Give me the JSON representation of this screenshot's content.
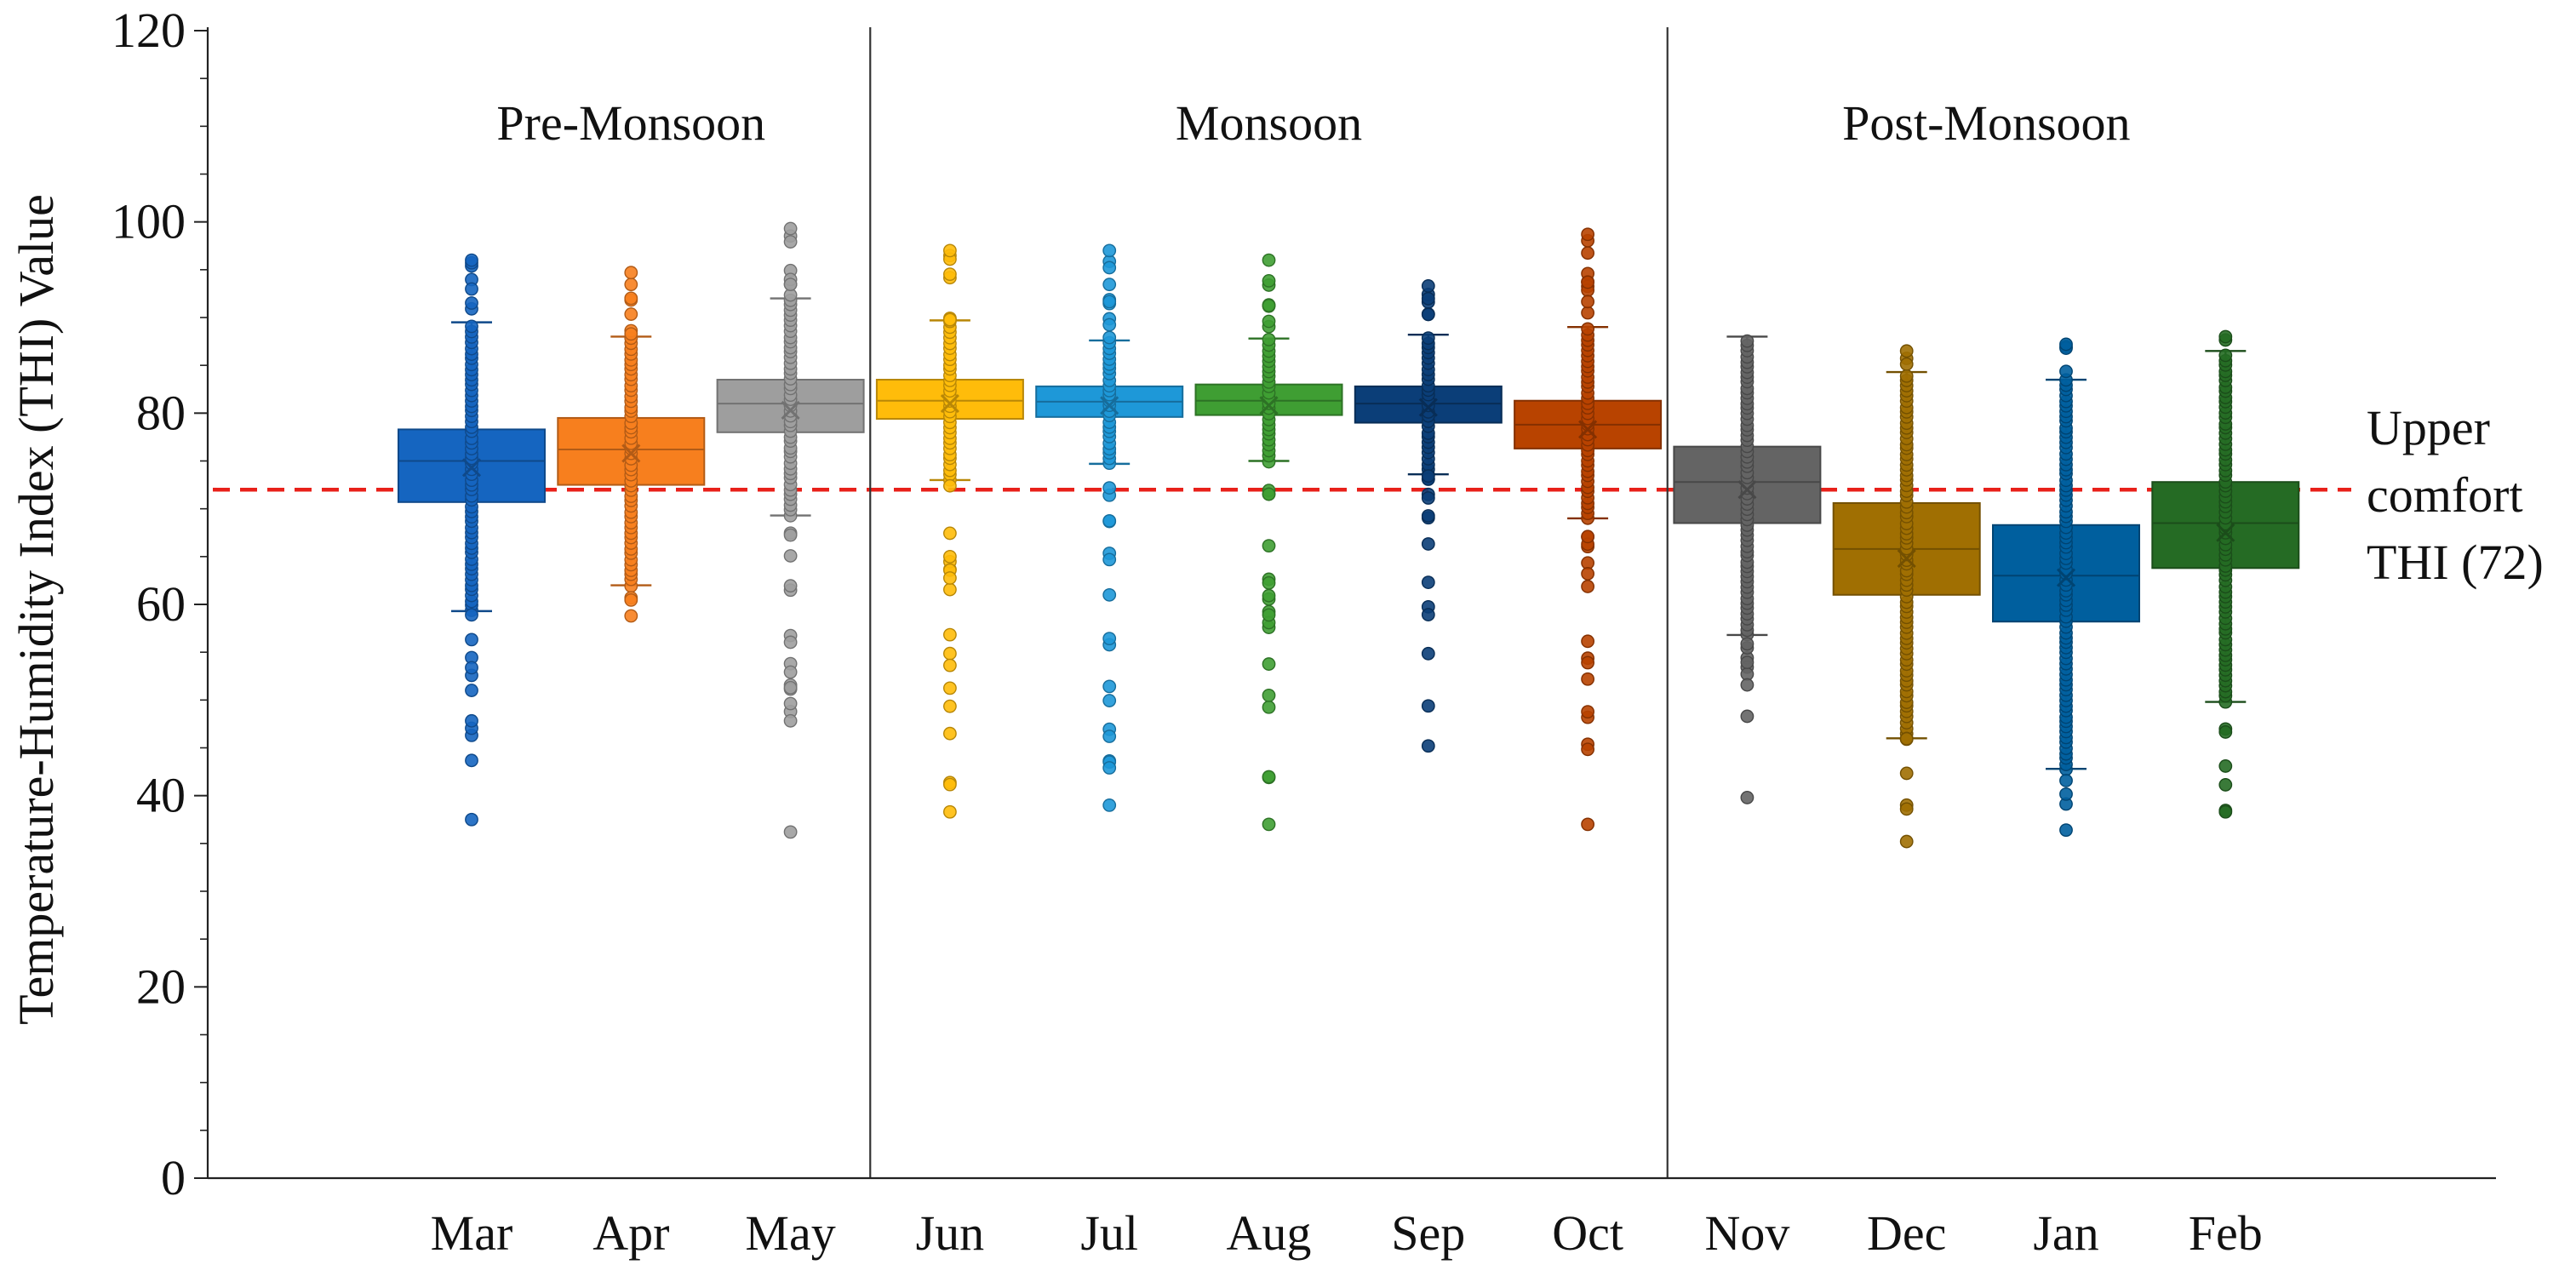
{
  "chart_data": {
    "type": "box",
    "ylabel": "Temperature-Humidity Index (THI) Value",
    "xlabel": "",
    "ylim": [
      0,
      120
    ],
    "yticks": [
      0,
      20,
      40,
      60,
      80,
      100,
      120
    ],
    "categories": [
      "Mar",
      "Apr",
      "May",
      "Jun",
      "Jul",
      "Aug",
      "Sep",
      "Oct",
      "Nov",
      "Dec",
      "Jan",
      "Feb"
    ],
    "seasons": [
      {
        "label": "Pre-Monsoon",
        "months": [
          "Mar",
          "Apr",
          "May"
        ]
      },
      {
        "label": "Monsoon",
        "months": [
          "Jun",
          "Jul",
          "Aug",
          "Sep",
          "Oct"
        ]
      },
      {
        "label": "Post-Monsoon",
        "months": [
          "Nov",
          "Dec",
          "Jan",
          "Feb"
        ]
      }
    ],
    "threshold": {
      "value": 72,
      "label_lines": [
        "Upper",
        "comfort",
        "THI (72)"
      ]
    },
    "series": [
      {
        "name": "Mar",
        "color": "#1565c0",
        "q1": 70.7,
        "median": 75.0,
        "q3": 78.3,
        "mean": 74.3,
        "whisker_low": 59.3,
        "whisker_high": 89.5,
        "min": 37.5,
        "max": 96.0
      },
      {
        "name": "Apr",
        "color": "#f77f1e",
        "q1": 72.5,
        "median": 76.2,
        "q3": 79.5,
        "mean": 75.8,
        "whisker_low": 62.0,
        "whisker_high": 88.0,
        "min": 58.8,
        "max": 94.7
      },
      {
        "name": "May",
        "color": "#9e9e9e",
        "q1": 78.0,
        "median": 81.0,
        "q3": 83.5,
        "mean": 80.3,
        "whisker_low": 69.3,
        "whisker_high": 92.0,
        "min": 36.2,
        "max": 99.3
      },
      {
        "name": "Jun",
        "color": "#ffbc0a",
        "q1": 79.4,
        "median": 81.3,
        "q3": 83.5,
        "mean": 81.0,
        "whisker_low": 73.0,
        "whisker_high": 89.7,
        "min": 38.3,
        "max": 97.0
      },
      {
        "name": "Jul",
        "color": "#1e98d8",
        "q1": 79.6,
        "median": 81.2,
        "q3": 82.8,
        "mean": 80.8,
        "whisker_low": 74.7,
        "whisker_high": 87.6,
        "min": 39.0,
        "max": 97.0
      },
      {
        "name": "Aug",
        "color": "#3f9e33",
        "q1": 79.8,
        "median": 81.3,
        "q3": 83.0,
        "mean": 80.8,
        "whisker_low": 75.0,
        "whisker_high": 87.8,
        "min": 37.0,
        "max": 96.0
      },
      {
        "name": "Sep",
        "color": "#0b3e78",
        "q1": 79.0,
        "median": 81.0,
        "q3": 82.8,
        "mean": 80.6,
        "whisker_low": 73.6,
        "whisker_high": 88.2,
        "min": 45.2,
        "max": 93.3
      },
      {
        "name": "Oct",
        "color": "#b84300",
        "q1": 76.3,
        "median": 78.8,
        "q3": 81.3,
        "mean": 78.3,
        "whisker_low": 69.0,
        "whisker_high": 89.0,
        "min": 37.0,
        "max": 98.7
      },
      {
        "name": "Nov",
        "color": "#646464",
        "q1": 68.5,
        "median": 72.8,
        "q3": 76.5,
        "mean": 72.0,
        "whisker_low": 56.8,
        "whisker_high": 88.0,
        "min": 39.8,
        "max": 88.0
      },
      {
        "name": "Dec",
        "color": "#a06f02",
        "q1": 61.0,
        "median": 65.8,
        "q3": 70.6,
        "mean": 64.8,
        "whisker_low": 46.0,
        "whisker_high": 84.3,
        "min": 35.2,
        "max": 86.5
      },
      {
        "name": "Jan",
        "color": "#005f9e",
        "q1": 58.2,
        "median": 63.0,
        "q3": 68.3,
        "mean": 62.8,
        "whisker_low": 42.8,
        "whisker_high": 83.5,
        "min": 36.4,
        "max": 87.2
      },
      {
        "name": "Feb",
        "color": "#256b24",
        "q1": 63.8,
        "median": 68.5,
        "q3": 72.8,
        "mean": 67.5,
        "whisker_low": 49.8,
        "whisker_high": 86.5,
        "min": 38.3,
        "max": 88.0
      }
    ]
  }
}
